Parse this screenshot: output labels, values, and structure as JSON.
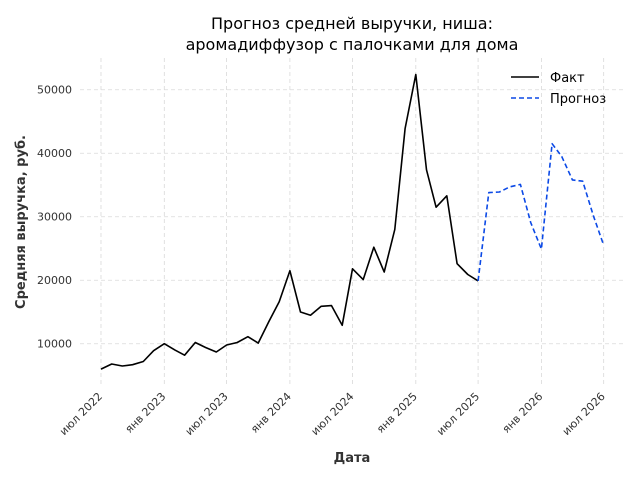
{
  "chart_data": {
    "type": "line",
    "title_lines": [
      "Прогноз средней выручки, ниша:",
      "аромадиффузор с палочками для дома"
    ],
    "xlabel": "Дата",
    "ylabel": "Средняя выручка, руб.",
    "x_tick_labels": [
      {
        "date": "2022-07-01",
        "label": "июл 2022"
      },
      {
        "date": "2023-01-01",
        "label": "янв 2023"
      },
      {
        "date": "2023-07-01",
        "label": "июл 2023"
      },
      {
        "date": "2024-01-01",
        "label": "янв 2024"
      },
      {
        "date": "2024-07-01",
        "label": "июл 2024"
      },
      {
        "date": "2025-01-01",
        "label": "янв 2025"
      },
      {
        "date": "2025-07-01",
        "label": "июл 2025"
      },
      {
        "date": "2026-01-01",
        "label": "янв 2026"
      },
      {
        "date": "2026-07-01",
        "label": "июл 2026"
      }
    ],
    "y_ticks": [
      10000,
      20000,
      30000,
      40000,
      50000
    ],
    "xlim": [
      "2022-05-01",
      "2026-09-01"
    ],
    "ylim": [
      3500,
      55000
    ],
    "grid": true,
    "legend_position": "top-right",
    "series": [
      {
        "name": "Факт",
        "style": "solid",
        "color": "#000000",
        "points": [
          {
            "x": "2022-07-01",
            "y": 6000
          },
          {
            "x": "2022-08-01",
            "y": 6800
          },
          {
            "x": "2022-09-01",
            "y": 6500
          },
          {
            "x": "2022-10-01",
            "y": 6700
          },
          {
            "x": "2022-11-01",
            "y": 7200
          },
          {
            "x": "2022-12-01",
            "y": 8900
          },
          {
            "x": "2023-01-01",
            "y": 10000
          },
          {
            "x": "2023-02-01",
            "y": 9000
          },
          {
            "x": "2023-03-01",
            "y": 8200
          },
          {
            "x": "2023-04-01",
            "y": 10200
          },
          {
            "x": "2023-05-01",
            "y": 9400
          },
          {
            "x": "2023-06-01",
            "y": 8700
          },
          {
            "x": "2023-07-01",
            "y": 9800
          },
          {
            "x": "2023-08-01",
            "y": 10200
          },
          {
            "x": "2023-09-01",
            "y": 11100
          },
          {
            "x": "2023-10-01",
            "y": 10100
          },
          {
            "x": "2023-11-01",
            "y": 13500
          },
          {
            "x": "2023-12-01",
            "y": 16600
          },
          {
            "x": "2024-01-01",
            "y": 21500
          },
          {
            "x": "2024-02-01",
            "y": 15000
          },
          {
            "x": "2024-03-01",
            "y": 14500
          },
          {
            "x": "2024-04-01",
            "y": 15900
          },
          {
            "x": "2024-05-01",
            "y": 16000
          },
          {
            "x": "2024-06-01",
            "y": 12900
          },
          {
            "x": "2024-07-01",
            "y": 21800
          },
          {
            "x": "2024-08-01",
            "y": 20100
          },
          {
            "x": "2024-09-01",
            "y": 25200
          },
          {
            "x": "2024-10-01",
            "y": 21300
          },
          {
            "x": "2024-11-01",
            "y": 28000
          },
          {
            "x": "2024-12-01",
            "y": 43900
          },
          {
            "x": "2025-01-01",
            "y": 52400
          },
          {
            "x": "2025-02-01",
            "y": 37400
          },
          {
            "x": "2025-03-01",
            "y": 31500
          },
          {
            "x": "2025-04-01",
            "y": 33300
          },
          {
            "x": "2025-05-01",
            "y": 22600
          },
          {
            "x": "2025-06-01",
            "y": 20900
          },
          {
            "x": "2025-07-01",
            "y": 19900
          }
        ]
      },
      {
        "name": "Прогноз",
        "style": "dashed",
        "color": "#0b49e6",
        "points": [
          {
            "x": "2025-07-01",
            "y": 19900
          },
          {
            "x": "2025-08-01",
            "y": 33800
          },
          {
            "x": "2025-09-01",
            "y": 33900
          },
          {
            "x": "2025-10-01",
            "y": 34700
          },
          {
            "x": "2025-11-01",
            "y": 35100
          },
          {
            "x": "2025-12-01",
            "y": 29100
          },
          {
            "x": "2026-01-01",
            "y": 24900
          },
          {
            "x": "2026-02-01",
            "y": 41500
          },
          {
            "x": "2026-03-01",
            "y": 39500
          },
          {
            "x": "2026-04-01",
            "y": 35800
          },
          {
            "x": "2026-05-01",
            "y": 35600
          },
          {
            "x": "2026-06-01",
            "y": 30200
          },
          {
            "x": "2026-07-01",
            "y": 25500
          }
        ]
      }
    ]
  }
}
